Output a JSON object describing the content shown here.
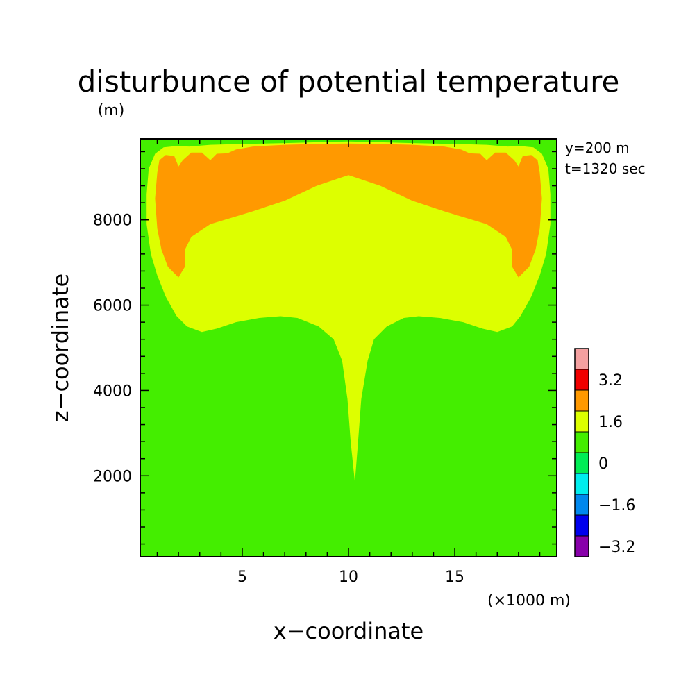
{
  "chart_data": {
    "type": "heatmap",
    "title": "disturbunce of potential temperature",
    "units_label": "(m)",
    "xlabel": "x−coordinate",
    "ylabel": "z−coordinate",
    "x_scale_note": "(×1000 m)",
    "info": [
      "y=200 m",
      "t=1320 sec"
    ],
    "xlim": [
      0.2,
      19.8
    ],
    "ylim": [
      100,
      9900
    ],
    "x_ticks": [
      5,
      10,
      15
    ],
    "x_tick_labels": [
      "5",
      "10",
      "15"
    ],
    "y_ticks": [
      2000,
      4000,
      6000,
      8000
    ],
    "y_tick_labels": [
      "2000",
      "4000",
      "6000",
      "8000"
    ],
    "colorbar": {
      "label_levels": [
        "3.2",
        "1.6",
        "0",
        "−1.6",
        "−3.2"
      ],
      "bins_top_to_bottom": [
        {
          "range": [
            3.2,
            4.0
          ],
          "color": "#f4a0a0"
        },
        {
          "range": [
            2.4,
            3.2
          ],
          "color": "#f00000"
        },
        {
          "range": [
            1.6,
            2.4
          ],
          "color": "#ff9900"
        },
        {
          "range": [
            0.8,
            1.6
          ],
          "color": "#ddff00"
        },
        {
          "range": [
            0.0,
            0.8
          ],
          "color": "#44ee00"
        },
        {
          "range": [
            -0.8,
            0.0
          ],
          "color": "#00ee55"
        },
        {
          "range": [
            -1.6,
            -0.8
          ],
          "color": "#00eeee"
        },
        {
          "range": [
            -2.4,
            -1.6
          ],
          "color": "#0088ee"
        },
        {
          "range": [
            -3.2,
            -2.4
          ],
          "color": "#0000ee"
        },
        {
          "range": [
            -4.0,
            -3.2
          ],
          "color": "#8800aa"
        }
      ]
    },
    "regions": [
      {
        "name": "background 0 to 0.8",
        "color": "#44ee00",
        "polygon": [
          [
            0.2,
            100
          ],
          [
            19.8,
            100
          ],
          [
            19.8,
            9900
          ],
          [
            0.2,
            9900
          ]
        ]
      },
      {
        "name": "0.8 to 1.6",
        "color": "#ddff00",
        "polygon": [
          [
            0.9,
            9550
          ],
          [
            1.3,
            9700
          ],
          [
            1.9,
            9730
          ],
          [
            2.5,
            9720
          ],
          [
            3.5,
            9760
          ],
          [
            5.0,
            9780
          ],
          [
            7.0,
            9800
          ],
          [
            8.5,
            9820
          ],
          [
            10.0,
            9840
          ],
          [
            11.5,
            9820
          ],
          [
            13.0,
            9800
          ],
          [
            15.0,
            9780
          ],
          [
            16.5,
            9760
          ],
          [
            17.5,
            9720
          ],
          [
            18.1,
            9730
          ],
          [
            18.7,
            9700
          ],
          [
            19.1,
            9550
          ],
          [
            19.4,
            9200
          ],
          [
            19.5,
            8600
          ],
          [
            19.5,
            7900
          ],
          [
            19.3,
            7200
          ],
          [
            19.0,
            6700
          ],
          [
            18.6,
            6200
          ],
          [
            18.1,
            5750
          ],
          [
            17.7,
            5500
          ],
          [
            17.0,
            5370
          ],
          [
            16.3,
            5450
          ],
          [
            15.4,
            5600
          ],
          [
            14.3,
            5700
          ],
          [
            13.3,
            5740
          ],
          [
            12.6,
            5700
          ],
          [
            11.8,
            5500
          ],
          [
            11.2,
            5200
          ],
          [
            10.9,
            4700
          ],
          [
            10.6,
            3800
          ],
          [
            10.45,
            2800
          ],
          [
            10.3,
            1850
          ],
          [
            10.1,
            2800
          ],
          [
            9.95,
            3800
          ],
          [
            9.7,
            4700
          ],
          [
            9.3,
            5200
          ],
          [
            8.6,
            5500
          ],
          [
            7.6,
            5700
          ],
          [
            6.8,
            5740
          ],
          [
            5.8,
            5700
          ],
          [
            4.7,
            5600
          ],
          [
            3.8,
            5450
          ],
          [
            3.1,
            5370
          ],
          [
            2.4,
            5500
          ],
          [
            1.9,
            5750
          ],
          [
            1.4,
            6200
          ],
          [
            1.0,
            6700
          ],
          [
            0.7,
            7200
          ],
          [
            0.5,
            7900
          ],
          [
            0.5,
            8600
          ],
          [
            0.6,
            9200
          ]
        ]
      },
      {
        "name": "1.6 to 2.4",
        "color": "#ff9900",
        "polygon": [
          [
            1.1,
            9400
          ],
          [
            1.4,
            9520
          ],
          [
            1.8,
            9500
          ],
          [
            2.0,
            9250
          ],
          [
            2.2,
            9400
          ],
          [
            2.6,
            9580
          ],
          [
            3.1,
            9580
          ],
          [
            3.5,
            9400
          ],
          [
            3.8,
            9550
          ],
          [
            4.3,
            9560
          ],
          [
            4.7,
            9650
          ],
          [
            5.5,
            9720
          ],
          [
            7.0,
            9760
          ],
          [
            8.5,
            9780
          ],
          [
            10.0,
            9790
          ],
          [
            11.5,
            9780
          ],
          [
            13.0,
            9760
          ],
          [
            14.5,
            9720
          ],
          [
            15.3,
            9650
          ],
          [
            15.7,
            9560
          ],
          [
            16.2,
            9550
          ],
          [
            16.5,
            9400
          ],
          [
            16.9,
            9580
          ],
          [
            17.4,
            9580
          ],
          [
            17.8,
            9400
          ],
          [
            18.0,
            9250
          ],
          [
            18.2,
            9500
          ],
          [
            18.6,
            9520
          ],
          [
            18.9,
            9400
          ],
          [
            19.0,
            9100
          ],
          [
            19.1,
            8500
          ],
          [
            19.0,
            7800
          ],
          [
            18.8,
            7300
          ],
          [
            18.5,
            6900
          ],
          [
            18.0,
            6650
          ],
          [
            17.7,
            6900
          ],
          [
            17.7,
            7300
          ],
          [
            17.4,
            7600
          ],
          [
            16.5,
            7900
          ],
          [
            15.5,
            8050
          ],
          [
            14.5,
            8200
          ],
          [
            13.0,
            8450
          ],
          [
            11.5,
            8800
          ],
          [
            10.0,
            9050
          ],
          [
            8.5,
            8800
          ],
          [
            7.0,
            8450
          ],
          [
            5.5,
            8200
          ],
          [
            4.5,
            8050
          ],
          [
            3.5,
            7900
          ],
          [
            2.6,
            7600
          ],
          [
            2.3,
            7300
          ],
          [
            2.3,
            6900
          ],
          [
            2.0,
            6650
          ],
          [
            1.5,
            6900
          ],
          [
            1.2,
            7300
          ],
          [
            1.0,
            7800
          ],
          [
            0.9,
            8500
          ],
          [
            1.0,
            9100
          ]
        ]
      }
    ]
  }
}
